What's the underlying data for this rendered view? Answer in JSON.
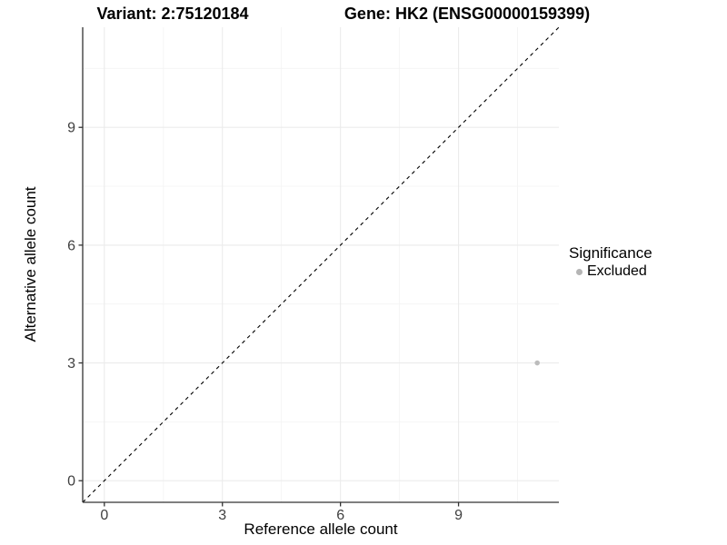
{
  "header": {
    "variant_title": "Variant: 2:75120184",
    "gene_title": "Gene: HK2 (ENSG00000159399)"
  },
  "chart_data": {
    "type": "scatter",
    "xlabel": "Reference allele count",
    "ylabel": "Alternative allele count",
    "xlim": [
      -0.55,
      11.55
    ],
    "ylim": [
      -0.55,
      11.55
    ],
    "x_ticks": [
      0,
      3,
      6,
      9
    ],
    "y_ticks": [
      0,
      3,
      6,
      9
    ],
    "x_minor_ticks": [
      1.5,
      4.5,
      7.5,
      10.5
    ],
    "y_minor_ticks": [
      1.5,
      4.5,
      7.5,
      10.5
    ],
    "grid": "major-and-minor",
    "legend_position": "right",
    "points": [
      {
        "x": 11,
        "y": 3,
        "series": "Excluded"
      }
    ],
    "identity_line": {
      "style": "dashed",
      "from": [
        -0.55,
        -0.55
      ],
      "to": [
        11.55,
        11.55
      ],
      "color": "#000000"
    },
    "colors": {
      "grid_major": "#ebebeb",
      "grid_minor": "#f4f4f4",
      "axis_line": "#333333",
      "tick_label": "#404040",
      "point": "#bcbcbc",
      "background": "#ffffff"
    }
  },
  "legend": {
    "title": "Significance",
    "items": [
      {
        "label": "Excluded",
        "color": "#b5b5b5"
      }
    ]
  }
}
